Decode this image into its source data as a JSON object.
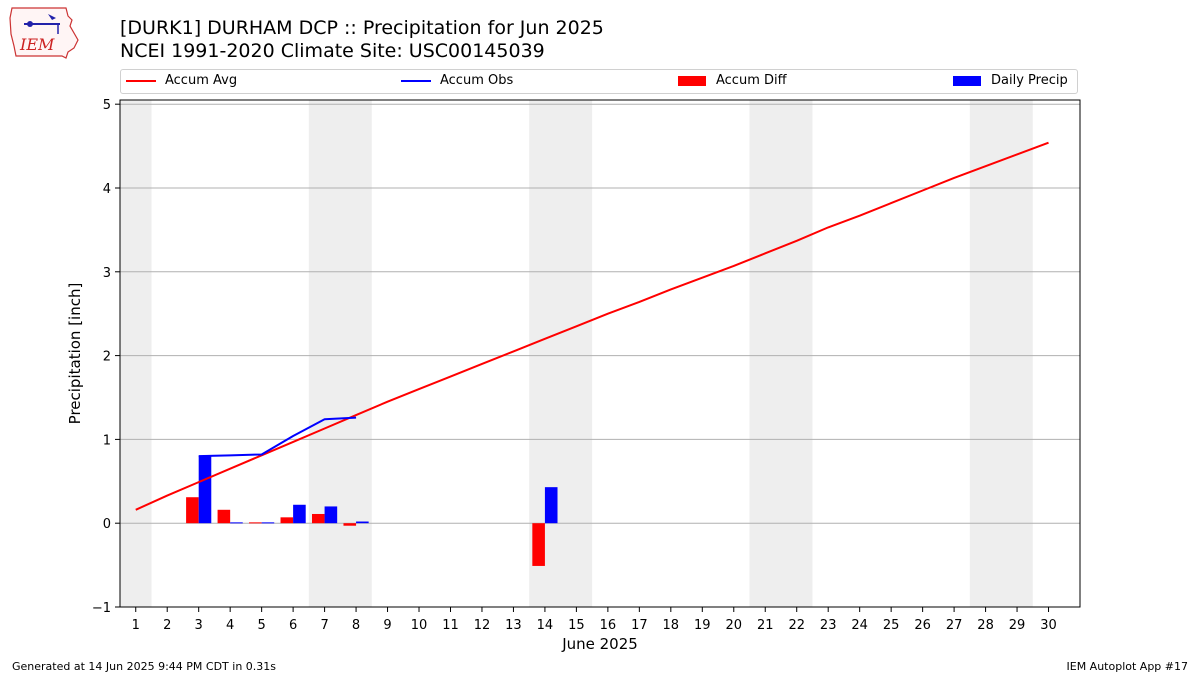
{
  "header": {
    "title_line1": "[DURK1] DURHAM DCP :: Precipitation for Jun 2025",
    "title_line2": "NCEI 1991-2020 Climate Site: USC00145039"
  },
  "logo": {
    "text": "IEM"
  },
  "footer": {
    "left": "Generated at 14 Jun 2025 9:44 PM CDT in 0.31s",
    "right": "IEM Autoplot App #17"
  },
  "colors": {
    "avg": "#ff0000",
    "obs": "#0000ff",
    "diff": "#ff0000",
    "daily": "#0000ff",
    "weekend": "#eeeeee",
    "grid": "#b0b0b0"
  },
  "chart_data": {
    "type": "bar",
    "title": "[DURK1] DURHAM DCP :: Precipitation for Jun 2025",
    "subtitle": "NCEI 1991-2020 Climate Site: USC00145039",
    "xlabel": "June 2025",
    "ylabel": "Precipitation [inch]",
    "xlim": [
      0.5,
      31.0
    ],
    "ylim": [
      -1,
      5.05
    ],
    "yticks": [
      -1,
      0,
      1,
      2,
      3,
      4,
      5
    ],
    "ytick_labels": [
      "−1",
      "0",
      "1",
      "2",
      "3",
      "4",
      "5"
    ],
    "x": [
      1,
      2,
      3,
      4,
      5,
      6,
      7,
      8,
      9,
      10,
      11,
      12,
      13,
      14,
      15,
      16,
      17,
      18,
      19,
      20,
      21,
      22,
      23,
      24,
      25,
      26,
      27,
      28,
      29,
      30
    ],
    "xtick_labels": [
      "1",
      "2",
      "3",
      "4",
      "5",
      "6",
      "7",
      "8",
      "9",
      "10",
      "11",
      "12",
      "13",
      "14",
      "15",
      "16",
      "17",
      "18",
      "19",
      "20",
      "21",
      "22",
      "23",
      "24",
      "25",
      "26",
      "27",
      "28",
      "29",
      "30"
    ],
    "grid": "y",
    "legend_placement": "top",
    "weekend_spans": [
      [
        0.5,
        1.5
      ],
      [
        6.5,
        8.5
      ],
      [
        13.5,
        15.5
      ],
      [
        20.5,
        22.5
      ],
      [
        27.5,
        29.5
      ]
    ],
    "series": [
      {
        "name": "Accum Avg",
        "kind": "line",
        "x": [
          1,
          2,
          3,
          4,
          5,
          6,
          7,
          8,
          9,
          10,
          11,
          12,
          13,
          14,
          15,
          16,
          17,
          18,
          19,
          20,
          21,
          22,
          23,
          24,
          25,
          26,
          27,
          28,
          29,
          30
        ],
        "values": [
          0.16,
          0.33,
          0.49,
          0.65,
          0.81,
          0.97,
          1.13,
          1.29,
          1.45,
          1.6,
          1.75,
          1.9,
          2.05,
          2.2,
          2.35,
          2.5,
          2.64,
          2.79,
          2.93,
          3.07,
          3.22,
          3.37,
          3.53,
          3.67,
          3.82,
          3.97,
          4.12,
          4.26,
          4.4,
          4.54
        ]
      },
      {
        "name": "Accum Obs",
        "kind": "line",
        "x": [
          3,
          4,
          5,
          6,
          7,
          8
        ],
        "values": [
          0.8,
          0.81,
          0.82,
          1.04,
          1.24,
          1.26
        ]
      },
      {
        "name": "Accum Diff",
        "kind": "bar",
        "x": [
          3,
          4,
          5,
          6,
          7,
          8,
          14
        ],
        "values": [
          0.31,
          0.16,
          0.01,
          0.07,
          0.11,
          -0.03,
          -0.51
        ]
      },
      {
        "name": "Daily Precip",
        "kind": "bar",
        "x": [
          3,
          4,
          5,
          6,
          7,
          8,
          14
        ],
        "values": [
          0.8,
          0.01,
          0.01,
          0.22,
          0.2,
          0.02,
          0.43
        ]
      }
    ]
  }
}
